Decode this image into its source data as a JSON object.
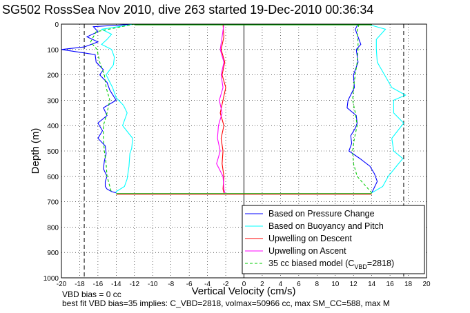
{
  "chart_data": {
    "type": "line",
    "title": "SG502 RossSea Nov 2010, dive 263 started 19-Dec-2010 00:36:34",
    "xlabel": "Vertical Velocity (cm/s)",
    "ylabel": "Depth (m)",
    "xlim": [
      -20,
      20
    ],
    "ylim": [
      0,
      1000
    ],
    "y_reversed": true,
    "grid": true,
    "xticks": [
      "-20",
      "-18",
      "-16",
      "-14",
      "-12",
      "-10",
      "-8",
      "-6",
      "-4",
      "-2",
      "0",
      "2",
      "4",
      "6",
      "8",
      "10",
      "12",
      "14",
      "16",
      "18",
      "20"
    ],
    "yticks": [
      "0",
      "100",
      "200",
      "300",
      "400",
      "500",
      "600",
      "700",
      "800",
      "900",
      "1000"
    ],
    "legend_position": "bottom-right",
    "colors": {
      "pressure": "#0000ff",
      "buoyancy": "#00ffff",
      "up_descent": "#ff0000",
      "up_ascent": "#ff00ff",
      "model": "#00cc00"
    },
    "legend": [
      "Based on Pressure Change",
      "Based on Buoyancy and Pitch",
      "Upwelling on Descent",
      "Upwelling on Ascent",
      "35 cc biased model (C_VBD=2818)"
    ],
    "legend_label_model_main": "35 cc biased model (C",
    "legend_label_model_sub": "VBD",
    "legend_label_model_end": "=2818)",
    "series": [
      {
        "name": "Based on Pressure Change",
        "descent": {
          "depth": [
            0,
            10,
            30,
            50,
            70,
            90,
            100,
            120,
            150,
            180,
            200,
            230,
            260,
            300,
            330,
            360,
            390,
            420,
            450,
            480,
            510,
            540,
            570,
            600,
            620,
            640,
            650,
            660,
            665
          ],
          "x": [
            -12,
            -16.5,
            -16,
            -17.2,
            -16,
            -17.5,
            -20,
            -16.3,
            -16.2,
            -15.4,
            -15.8,
            -15,
            -14.7,
            -14,
            -15.4,
            -15,
            -16,
            -15.5,
            -16,
            -15.2,
            -15.1,
            -15.3,
            -15.4,
            -15,
            -15.2,
            -15.2,
            -15,
            -14.5,
            -14
          ]
        },
        "ascent": {
          "depth": [
            0,
            20,
            50,
            80,
            100,
            150,
            200,
            250,
            300,
            330,
            360,
            390,
            410,
            440,
            470,
            500,
            530,
            560,
            590,
            620,
            650,
            665
          ],
          "x": [
            12.5,
            12.2,
            12.5,
            12.8,
            12.3,
            12.5,
            12,
            12.1,
            11.4,
            11.3,
            12.3,
            12.4,
            12.2,
            11.7,
            11.8,
            11.5,
            12.7,
            13.8,
            14.3,
            14.6,
            14.2,
            14
          ]
        }
      },
      {
        "name": "Based on Buoyancy and Pitch",
        "descent": {
          "depth": [
            0,
            20,
            40,
            60,
            80,
            100,
            130,
            160,
            200,
            250,
            290,
            320,
            350,
            400,
            450,
            490,
            510,
            560,
            610,
            640,
            660,
            665
          ],
          "x": [
            -12,
            -15.6,
            -14.5,
            -15,
            -15.6,
            -14.5,
            -14.2,
            -14.3,
            -15.1,
            -14.4,
            -14,
            -13.2,
            -12.8,
            -13.3,
            -12.2,
            -12.3,
            -12.5,
            -12.6,
            -12.8,
            -13.1,
            -14,
            -14
          ]
        },
        "ascent": {
          "depth": [
            0,
            20,
            60,
            100,
            150,
            200,
            250,
            280,
            300,
            350,
            390,
            450,
            500,
            530,
            560,
            600,
            640,
            665
          ],
          "x": [
            13.5,
            15.5,
            14.5,
            14.5,
            14.6,
            15.4,
            16.2,
            17.7,
            16.4,
            16.4,
            17.5,
            16.2,
            16.4,
            17.4,
            16.7,
            15.8,
            15.2,
            14
          ]
        }
      },
      {
        "name": "Upwelling on Descent",
        "descent": {
          "depth": [
            0,
            50,
            100,
            150,
            200,
            250,
            300,
            350,
            400,
            450,
            500,
            550,
            600,
            650,
            665
          ],
          "x": [
            -2.3,
            -2.2,
            -2.5,
            -2.1,
            -2.4,
            -2,
            -2.3,
            -2.6,
            -2.2,
            -2.5,
            -2.3,
            -2.4,
            -2.2,
            -2.3,
            -2.2
          ]
        }
      },
      {
        "name": "Upwelling on Ascent",
        "ascent": {
          "depth": [
            0,
            50,
            100,
            150,
            200,
            250,
            300,
            350,
            400,
            450,
            500,
            550,
            600,
            650,
            665
          ],
          "x": [
            -2.2,
            -2.4,
            -2.6,
            -2.2,
            -2.5,
            -2.3,
            -2.7,
            -2.4,
            -2.8,
            -2.9,
            -2.6,
            -3,
            -2.3,
            -2.2,
            -2.1
          ]
        }
      },
      {
        "name": "35 cc biased model (C_VBD=2818)",
        "descent": {
          "depth": [
            0,
            30,
            70,
            100,
            150,
            200,
            250,
            300,
            350,
            400,
            450,
            500,
            550,
            600,
            665
          ],
          "x": [
            -12,
            -16.2,
            -16.8,
            -16.1,
            -15.8,
            -15.3,
            -15.1,
            -14.7,
            -15,
            -15.4,
            -15.4,
            -15.3,
            -15.1,
            -15,
            -14.5
          ]
        },
        "ascent": {
          "depth": [
            0,
            30,
            70,
            100,
            150,
            200,
            250,
            300,
            350,
            400,
            450,
            500,
            550,
            600,
            665
          ],
          "x": [
            12.6,
            12.4,
            12.5,
            12.5,
            12.4,
            12.2,
            12,
            11.9,
            12.2,
            12.4,
            12.1,
            11.9,
            12,
            12.4,
            14
          ]
        }
      }
    ],
    "turn_line": {
      "depth": 668,
      "x": [
        -14,
        14
      ]
    },
    "surface_line": {
      "depth": 0,
      "x": [
        -12,
        14
      ]
    },
    "vertical_dashed": [
      -17.5,
      17.5
    ]
  },
  "notes": {
    "line1": "VBD bias = 0 cc",
    "line2": "best fit VBD bias=35 implies: C_VBD=2818, volmax=50966 cc, max SM_CC=588, max M"
  }
}
